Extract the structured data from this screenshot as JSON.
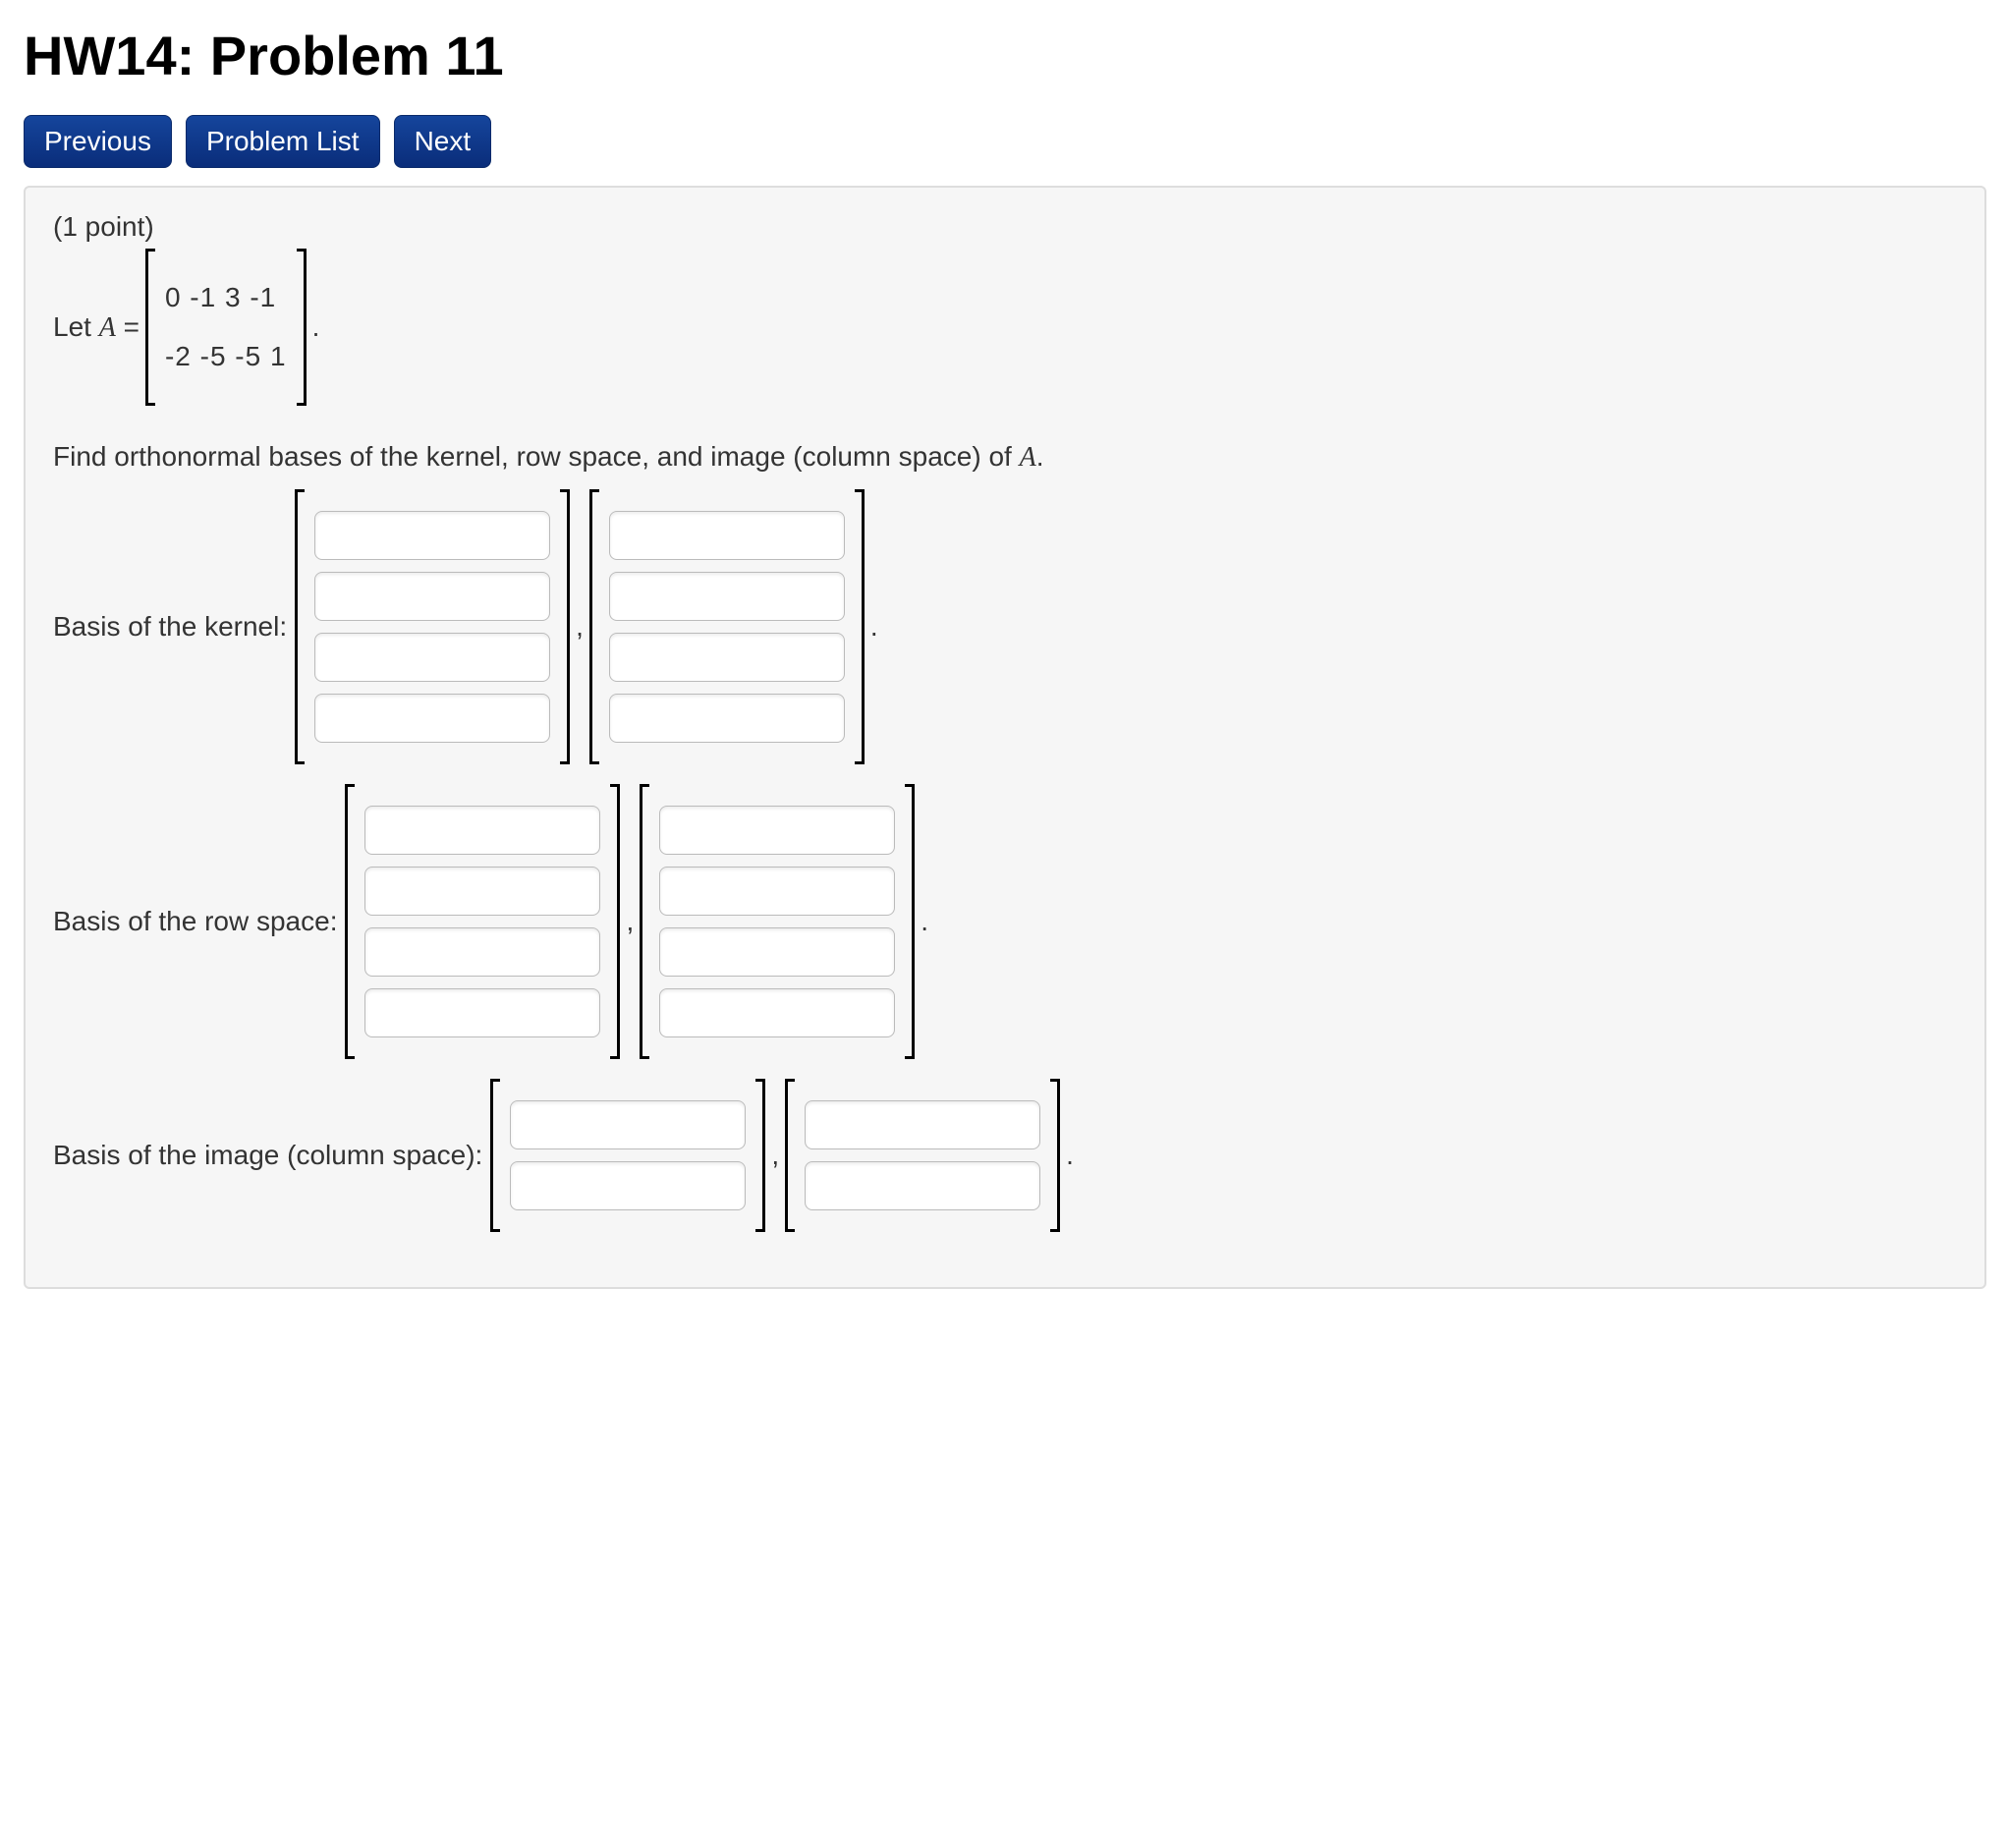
{
  "title": "HW14: Problem 11",
  "nav": {
    "prev": "Previous",
    "list": "Problem List",
    "next": "Next"
  },
  "problem": {
    "points_text": "(1 point)",
    "let_prefix": "Let ",
    "variable": "A",
    "equals": " =",
    "matrix_rows": [
      "0 -1 3 -1",
      "-2 -5 -5 1"
    ],
    "period": ".",
    "instruction_prefix": "Find orthonormal bases of the kernel, row space, and image (column space) of ",
    "instruction_var": "A",
    "instruction_suffix": ".",
    "sections": [
      {
        "label": "Basis of the kernel:",
        "vectors": 2,
        "rows_per_vector": 4
      },
      {
        "label": "Basis of the row space:",
        "vectors": 2,
        "rows_per_vector": 4
      },
      {
        "label": "Basis of the image (column space):",
        "vectors": 2,
        "rows_per_vector": 2
      }
    ],
    "vector_separator": ","
  },
  "style": {
    "button_bg": "#0a2d7a",
    "box_bg": "#f6f6f6"
  }
}
